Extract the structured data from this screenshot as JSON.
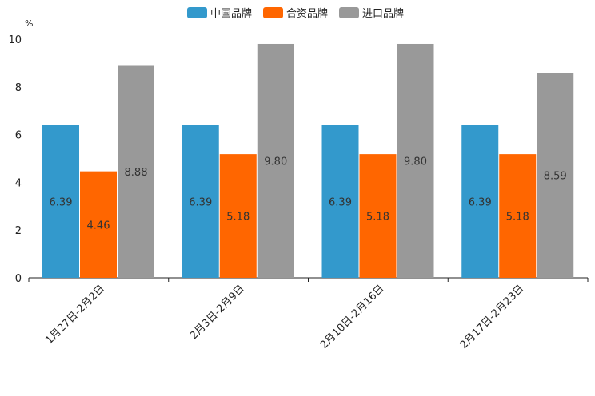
{
  "chart_data": {
    "type": "bar",
    "title": "",
    "xlabel": "",
    "ylabel": "%",
    "ylim": [
      0,
      10
    ],
    "yticks": [
      "0",
      "2",
      "4",
      "6",
      "8",
      "10"
    ],
    "categories": [
      "1月27日-2月2日",
      "2月3日-2月9日",
      "2月10日-2月16日",
      "2月17日-2月23日"
    ],
    "series": [
      {
        "name": "中国品牌",
        "color": "#3399cc",
        "values": [
          6.39,
          6.39,
          6.39,
          6.39
        ],
        "labels": [
          "6.39",
          "6.39",
          "6.39",
          "6.39"
        ]
      },
      {
        "name": "合资品牌",
        "color": "#ff6600",
        "values": [
          4.46,
          5.18,
          5.18,
          5.18
        ],
        "labels": [
          "4.46",
          "5.18",
          "5.18",
          "5.18"
        ]
      },
      {
        "name": "进口品牌",
        "color": "#999999",
        "values": [
          8.88,
          9.8,
          9.8,
          8.59
        ],
        "labels": [
          "8.88",
          "9.80",
          "9.80",
          "8.59"
        ]
      }
    ],
    "legend_position": "top-center",
    "grid": false
  }
}
